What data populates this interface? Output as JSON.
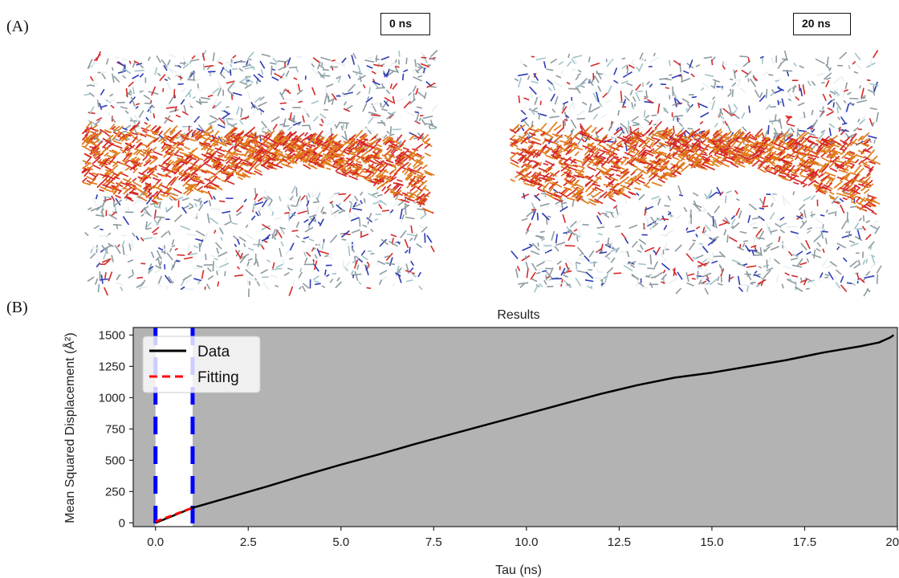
{
  "panelA": {
    "letter": "(A)",
    "snapshots": [
      {
        "label": "0 ns"
      },
      {
        "label": "20 ns"
      }
    ]
  },
  "panelB": {
    "letter": "(B)"
  },
  "colors": {
    "plot_background": "#b3b3b3",
    "data_line": "#000000",
    "fitting_line": "#ff0000",
    "window_lines": "#0000ff",
    "window_fill": "#ffffff",
    "atom_oxygen": "#d62828",
    "atom_framework": "#e07b1a",
    "atom_carbon": "#8c9aa0",
    "atom_nitrogen": "#2d3bb5",
    "atom_hydrogen": "#e8eef0"
  },
  "chart_data": {
    "type": "line",
    "title": "Results",
    "xlabel": "Tau (ns)",
    "ylabel": "Mean Squared Displacement (Å²)",
    "xlim": [
      -0.6,
      20.0
    ],
    "ylim": [
      -30,
      1560
    ],
    "xticks": [
      0.0,
      2.5,
      5.0,
      7.5,
      10.0,
      12.5,
      15.0,
      17.5,
      20.0
    ],
    "xtick_labels": [
      "0.0",
      "2.5",
      "5.0",
      "7.5",
      "10.0",
      "12.5",
      "15.0",
      "17.5",
      "20.0"
    ],
    "yticks": [
      0,
      250,
      500,
      750,
      1000,
      1250,
      1500
    ],
    "ytick_labels": [
      "0",
      "250",
      "500",
      "750",
      "1000",
      "1250",
      "1500"
    ],
    "grid": false,
    "legend": {
      "position": "upper-left",
      "entries": [
        "Data",
        "Fitting"
      ]
    },
    "fit_window": [
      0.0,
      1.0
    ],
    "series": [
      {
        "name": "Data",
        "style": "solid",
        "x": [
          0.0,
          0.5,
          1.0,
          2.0,
          3.0,
          4.0,
          5.0,
          6.0,
          7.0,
          8.0,
          9.0,
          10.0,
          11.0,
          12.0,
          13.0,
          14.0,
          15.0,
          16.0,
          17.0,
          18.0,
          19.0,
          19.5,
          19.8,
          19.9
        ],
        "y": [
          0,
          60,
          120,
          205,
          290,
          380,
          465,
          545,
          630,
          710,
          790,
          870,
          950,
          1030,
          1100,
          1160,
          1200,
          1250,
          1300,
          1360,
          1410,
          1440,
          1480,
          1500
        ]
      },
      {
        "name": "Fitting",
        "style": "dashed",
        "x": [
          0.0,
          1.0
        ],
        "y": [
          10,
          120
        ]
      }
    ]
  }
}
